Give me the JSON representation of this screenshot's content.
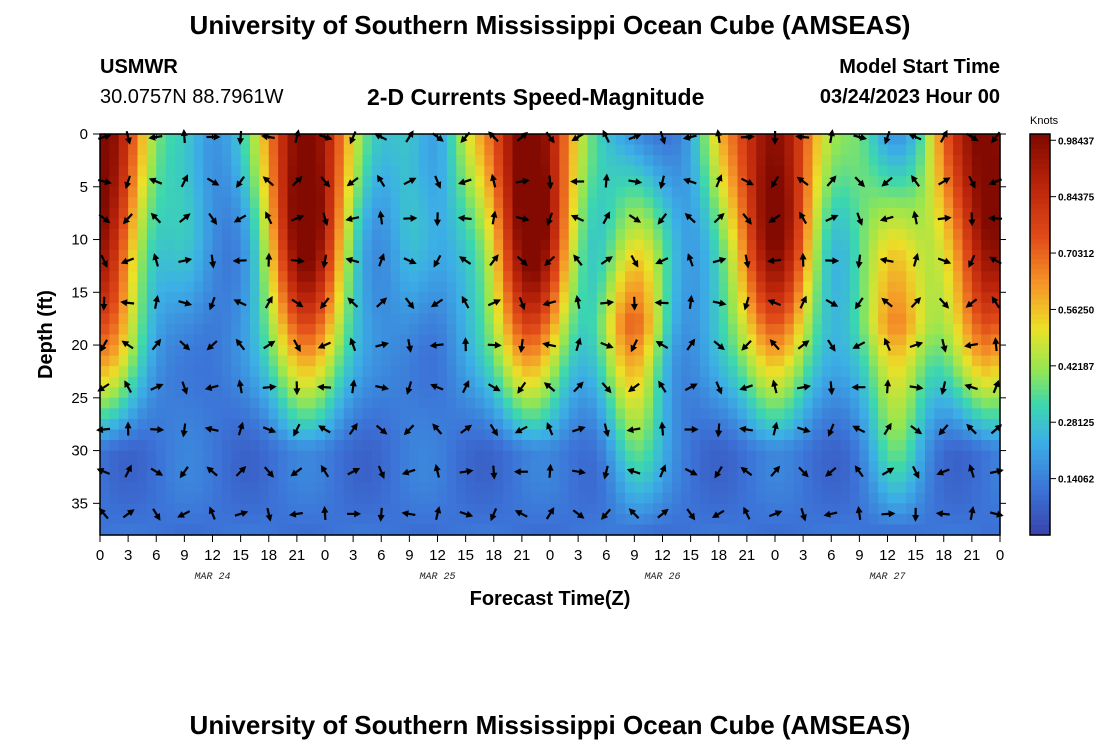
{
  "page": {
    "title": "University of Southern Mississippi Ocean Cube (AMSEAS)",
    "title_repeat": "University of Southern Mississippi Ocean Cube (AMSEAS)",
    "station_id": "USMWR",
    "location": "30.0757N  88.7961W",
    "subtitle": "2-D Currents Speed-Magnitude",
    "model_start_label": "Model Start Time",
    "model_start_value": "03/24/2023 Hour 00"
  },
  "chart_data": {
    "type": "heatmap",
    "title": "2-D Currents Speed-Magnitude",
    "xlabel": "Forecast Time(Z)",
    "ylabel": "Depth (ft)",
    "colorbar_label": "Knots",
    "colorbar_ticks": [
      "0.98437",
      "0.84375",
      "0.70312",
      "0.56250",
      "0.42187",
      "0.28125",
      "0.14062"
    ],
    "colorbar_range": [
      0,
      1.0
    ],
    "xlim": [
      0,
      96
    ],
    "ylim": [
      0,
      38
    ],
    "y_inverted": true,
    "x_tick_labels": [
      "0",
      "3",
      "6",
      "9",
      "12",
      "15",
      "18",
      "21",
      "0",
      "3",
      "6",
      "9",
      "12",
      "15",
      "18",
      "21",
      "0",
      "3",
      "6",
      "9",
      "12",
      "15",
      "18",
      "21",
      "0",
      "3",
      "6",
      "9",
      "12",
      "15",
      "18",
      "21",
      "0"
    ],
    "y_tick_values": [
      0,
      5,
      10,
      15,
      20,
      25,
      30,
      35
    ],
    "y_tick_labels": [
      "0",
      "5",
      "10",
      "15",
      "20",
      "25",
      "30",
      "35"
    ],
    "date_labels": [
      {
        "hour": 12,
        "text": "MAR 24"
      },
      {
        "hour": 36,
        "text": "MAR 25"
      },
      {
        "hour": 60,
        "text": "MAR 26"
      },
      {
        "hour": 84,
        "text": "MAR 27"
      }
    ],
    "arrow_hours": [
      0,
      3,
      6,
      9,
      12,
      15,
      18,
      21,
      24,
      27,
      30,
      33,
      36,
      39,
      42,
      45,
      48,
      51,
      54,
      57,
      60,
      63,
      66,
      69,
      72,
      75,
      78,
      81,
      84,
      87,
      90,
      93,
      96
    ],
    "arrow_depths": [
      0,
      4.5,
      8,
      12,
      16,
      20,
      24,
      28,
      32,
      36
    ],
    "speed_maxima": [
      {
        "hour": 0,
        "speed": 0.9
      },
      {
        "hour": 22,
        "speed": 0.95
      },
      {
        "hour": 46,
        "speed": 0.97
      },
      {
        "hour": 57,
        "speed": 0.6
      },
      {
        "hour": 72,
        "speed": 0.9
      },
      {
        "hour": 85,
        "speed": 0.55
      },
      {
        "hour": 95,
        "speed": 0.9
      }
    ]
  }
}
